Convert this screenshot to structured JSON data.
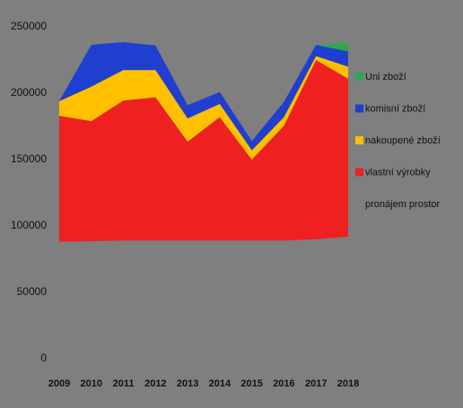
{
  "chart_data": {
    "type": "stacked_area",
    "categories": [
      "2009",
      "2010",
      "2011",
      "2012",
      "2013",
      "2014",
      "2015",
      "2016",
      "2017",
      "2018"
    ],
    "series": [
      {
        "name": "pronájem prostor",
        "color": "#7f7f7f",
        "values": [
          88000,
          88500,
          89000,
          89000,
          89000,
          89000,
          89000,
          89000,
          90000,
          92000
        ]
      },
      {
        "name": "vlastní výrobky",
        "color": "#ee2020",
        "values": [
          95000,
          90500,
          105500,
          108000,
          74500,
          93000,
          61000,
          86500,
          135000,
          119000
        ]
      },
      {
        "name": "nakoupené zboží",
        "color": "#ffc000",
        "values": [
          11000,
          26000,
          23000,
          20500,
          17500,
          10000,
          7000,
          6500,
          3000,
          9000
        ]
      },
      {
        "name": "komisní zboží",
        "color": "#1f3fcf",
        "values": [
          0,
          31500,
          21000,
          18500,
          10000,
          9000,
          7000,
          11500,
          8500,
          11500
        ]
      },
      {
        "name": "Uni zboží",
        "color": "#2ea84a",
        "values": [
          0,
          0,
          0,
          0,
          0,
          0,
          0,
          0,
          0,
          6500
        ]
      }
    ],
    "ylim": [
      0,
      250000
    ],
    "yticks": [
      0,
      50000,
      100000,
      150000,
      200000,
      250000
    ],
    "legend": "right"
  }
}
